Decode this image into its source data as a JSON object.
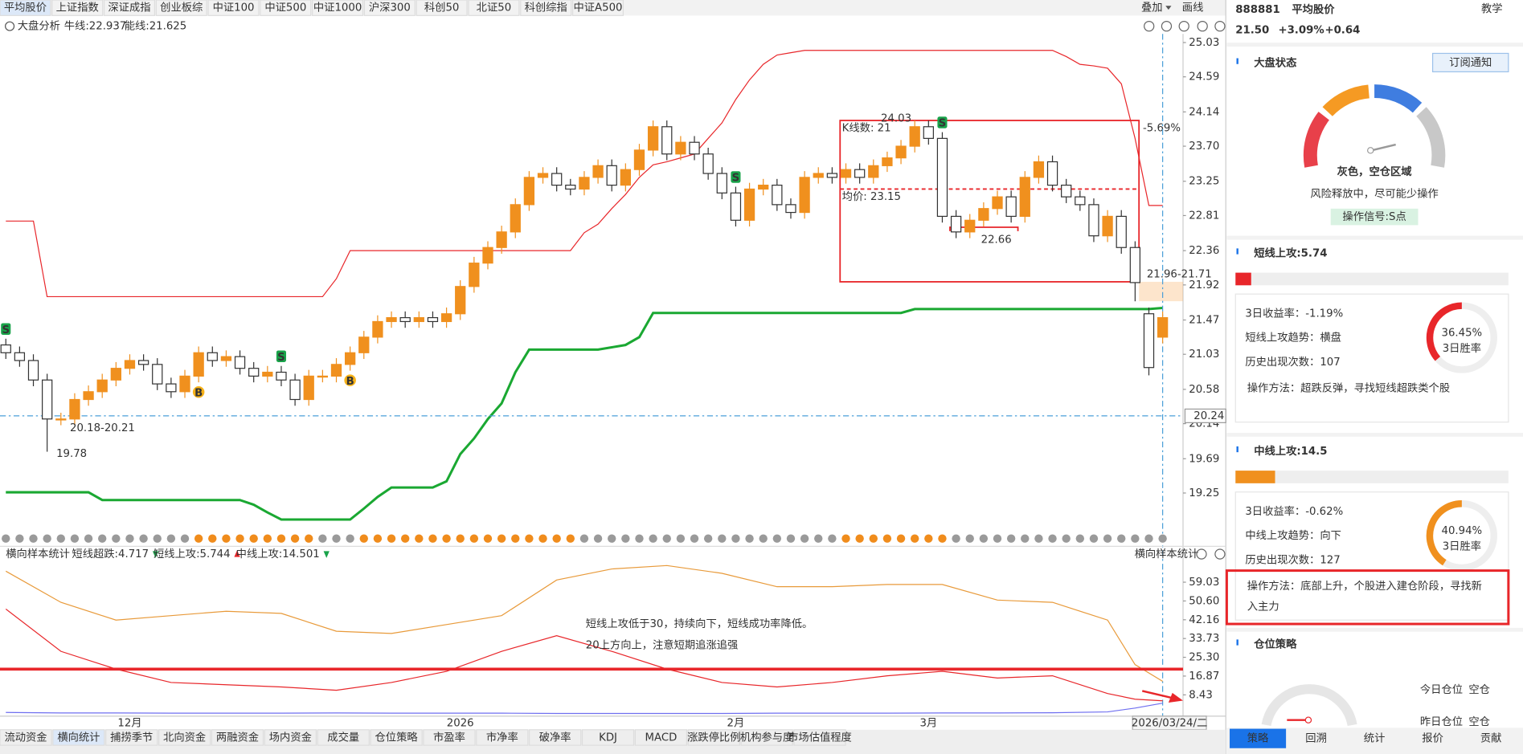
{
  "top_tabs": [
    "平均股价",
    "上证指数",
    "深证成指",
    "创业板综",
    "中证100",
    "中证500",
    "中证1000",
    "沪深300",
    "科创50",
    "北证50",
    "科创综指",
    "中证A500"
  ],
  "toolbar": {
    "overlay": "叠加",
    "draw": "画线"
  },
  "main_chart": {
    "type": "candlestick",
    "analysis": "大盘分析",
    "ylim": [
      18.79,
      25.14
    ],
    "yticks": [
      25.03,
      24.59,
      24.14,
      {
        "value": 23.7,
        "label": "23.70"
      },
      23.25,
      22.81,
      22.36,
      21.92,
      21.47,
      21.03,
      20.58,
      20.14,
      19.69,
      19.25
    ],
    "open": [
      21.15,
      21.05,
      20.95,
      20.7,
      20.2,
      20.2,
      20.45,
      20.55,
      20.7,
      20.85,
      20.95,
      20.9,
      20.65,
      20.55,
      20.75,
      21.05,
      20.95,
      21.0,
      20.85,
      20.75,
      20.8,
      20.7,
      20.45,
      20.75,
      20.75,
      20.9,
      21.05,
      21.25,
      21.45,
      21.5,
      21.45,
      21.5,
      21.45,
      21.55,
      21.9,
      22.2,
      22.4,
      22.6,
      22.95,
      23.3,
      23.35,
      23.2,
      23.15,
      23.3,
      23.45,
      23.2,
      23.4,
      23.65,
      23.95,
      23.6,
      23.75,
      23.6,
      23.35,
      23.1,
      22.75,
      23.15,
      23.2,
      22.95,
      22.85,
      23.3,
      23.35,
      23.3,
      23.4,
      23.3,
      23.45,
      23.55,
      23.7,
      23.95,
      23.8,
      22.8,
      22.6,
      22.75,
      22.9,
      23.05,
      22.8,
      23.3,
      23.5,
      23.2,
      23.05,
      22.95,
      22.55,
      22.8,
      22.4,
      21.55,
      21.25
    ],
    "high": [
      21.23,
      21.13,
      21.03,
      20.78,
      20.28,
      20.53,
      20.63,
      20.78,
      20.93,
      21.03,
      21.03,
      20.98,
      20.73,
      20.83,
      21.13,
      21.13,
      21.08,
      21.08,
      20.93,
      20.88,
      20.88,
      20.78,
      20.83,
      20.83,
      20.98,
      21.13,
      21.33,
      21.53,
      21.58,
      21.58,
      21.58,
      21.58,
      21.63,
      21.98,
      22.28,
      22.48,
      22.68,
      23.03,
      23.38,
      23.43,
      23.43,
      23.28,
      23.38,
      23.53,
      23.53,
      23.48,
      23.73,
      24.03,
      24.03,
      23.83,
      23.83,
      23.68,
      23.43,
      23.18,
      23.23,
      23.28,
      23.28,
      23.03,
      23.38,
      23.43,
      23.43,
      23.48,
      23.48,
      23.53,
      23.63,
      23.78,
      24.03,
      24.03,
      23.88,
      22.88,
      22.83,
      22.98,
      23.13,
      23.13,
      23.38,
      23.58,
      23.58,
      23.28,
      23.13,
      23.03,
      22.88,
      22.88,
      22.48,
      21.63,
      21.58
    ],
    "low": [
      20.97,
      20.87,
      20.62,
      19.78,
      20.12,
      20.12,
      20.37,
      20.47,
      20.62,
      20.77,
      20.82,
      20.57,
      20.47,
      20.47,
      20.67,
      20.87,
      20.87,
      20.77,
      20.67,
      20.67,
      20.62,
      20.37,
      20.37,
      20.67,
      20.67,
      20.82,
      20.97,
      21.17,
      21.37,
      21.37,
      21.37,
      21.37,
      21.37,
      21.47,
      21.82,
      22.12,
      22.32,
      22.52,
      22.87,
      23.22,
      23.12,
      23.07,
      23.07,
      23.22,
      23.12,
      23.12,
      23.32,
      23.57,
      23.52,
      23.52,
      23.52,
      23.27,
      23.02,
      22.67,
      22.67,
      23.07,
      22.87,
      22.77,
      22.77,
      23.22,
      23.22,
      23.22,
      23.22,
      23.22,
      23.37,
      23.47,
      23.62,
      23.72,
      22.72,
      22.52,
      22.52,
      22.67,
      22.82,
      22.72,
      22.72,
      23.22,
      23.12,
      22.97,
      22.87,
      22.47,
      22.47,
      22.32,
      21.71,
      20.76,
      21.17
    ],
    "close": [
      21.05,
      20.95,
      20.7,
      20.2,
      20.2,
      20.45,
      20.55,
      20.7,
      20.85,
      20.95,
      20.9,
      20.65,
      20.55,
      20.75,
      21.05,
      20.95,
      21.0,
      20.85,
      20.75,
      20.8,
      20.7,
      20.45,
      20.75,
      20.75,
      20.9,
      21.05,
      21.25,
      21.45,
      21.5,
      21.45,
      21.5,
      21.45,
      21.55,
      21.9,
      22.2,
      22.4,
      22.6,
      22.95,
      23.3,
      23.35,
      23.2,
      23.15,
      23.3,
      23.45,
      23.2,
      23.4,
      23.65,
      23.95,
      23.6,
      23.75,
      23.6,
      23.35,
      23.1,
      22.75,
      23.15,
      23.2,
      22.95,
      22.85,
      23.3,
      23.35,
      23.3,
      23.4,
      23.3,
      23.45,
      23.55,
      23.7,
      23.95,
      23.8,
      22.8,
      22.6,
      22.75,
      22.9,
      23.05,
      22.8,
      23.3,
      23.5,
      23.2,
      23.05,
      22.95,
      22.55,
      22.8,
      22.4,
      21.95,
      20.86,
      21.5
    ],
    "up_color": "#f0901e",
    "down_color": "#333333",
    "bull_line": {
      "name": "牛线:22.937",
      "color": "#e8262a",
      "values": [
        22.74,
        22.74,
        22.74,
        21.77,
        21.77,
        21.77,
        21.77,
        21.77,
        21.77,
        21.77,
        21.77,
        21.77,
        21.77,
        21.77,
        21.77,
        21.77,
        21.77,
        21.77,
        21.77,
        21.77,
        21.77,
        21.77,
        21.77,
        21.77,
        22.0,
        22.36,
        22.36,
        22.36,
        22.36,
        22.36,
        22.36,
        22.36,
        22.36,
        22.36,
        22.36,
        22.36,
        22.36,
        22.36,
        22.36,
        22.36,
        22.36,
        22.36,
        22.59,
        22.7,
        22.9,
        23.08,
        23.3,
        23.46,
        23.5,
        23.55,
        23.6,
        23.8,
        24.0,
        24.3,
        24.55,
        24.75,
        24.87,
        24.9,
        24.93,
        24.93,
        24.93,
        24.93,
        24.93,
        24.93,
        24.93,
        24.93,
        24.93,
        24.93,
        24.93,
        24.93,
        24.93,
        24.93,
        24.93,
        24.93,
        24.93,
        24.93,
        24.93,
        24.85,
        24.75,
        24.73,
        24.7,
        24.5,
        23.8,
        22.94,
        22.94
      ]
    },
    "energy_line": {
      "name": "能线:21.625",
      "color": "#1aa832",
      "values": [
        19.26,
        19.26,
        19.26,
        19.26,
        19.26,
        19.26,
        19.26,
        19.16,
        19.16,
        19.16,
        19.16,
        19.16,
        19.16,
        19.16,
        19.16,
        19.16,
        19.16,
        19.16,
        19.1,
        19.0,
        18.91,
        18.91,
        18.91,
        18.91,
        18.91,
        18.91,
        19.05,
        19.2,
        19.32,
        19.32,
        19.32,
        19.32,
        19.4,
        19.75,
        19.95,
        20.2,
        20.4,
        20.8,
        21.09,
        21.09,
        21.09,
        21.09,
        21.09,
        21.09,
        21.12,
        21.15,
        21.25,
        21.56,
        21.56,
        21.56,
        21.56,
        21.56,
        21.56,
        21.56,
        21.56,
        21.56,
        21.56,
        21.56,
        21.56,
        21.56,
        21.56,
        21.56,
        21.56,
        21.56,
        21.56,
        21.56,
        21.61,
        21.61,
        21.61,
        21.61,
        21.61,
        21.61,
        21.61,
        21.61,
        21.61,
        21.61,
        21.61,
        21.61,
        21.61,
        21.61,
        21.61,
        21.61,
        21.61,
        21.61,
        21.625
      ]
    },
    "signals": [
      {
        "label": "S",
        "index": 0
      },
      {
        "label": "B",
        "index": 14
      },
      {
        "label": "S",
        "index": 20
      },
      {
        "label": "B",
        "index": 25
      },
      {
        "label": "S",
        "index": 53
      },
      {
        "label": "S",
        "index": 68
      }
    ],
    "left_range": "20.18-20.21",
    "left_low": "19.78",
    "range_box": {
      "start": 61,
      "end": 82,
      "high": {
        "value": 24.03,
        "label": "24.03"
      },
      "low": 21.96,
      "count_label": "K线数: 21",
      "avg": {
        "value": 23.15,
        "label": "均价: 23.15"
      },
      "change": "-5.69%",
      "support": {
        "value": 22.66,
        "label": "22.66"
      },
      "low_label": "21.96-21.71"
    },
    "cursor": {
      "value": 20.24,
      "label": "20.24"
    }
  },
  "signal_dots": {
    "orange_ranges": [
      [
        14,
        22
      ],
      [
        26,
        41
      ],
      [
        61,
        68
      ]
    ],
    "count": 85
  },
  "lower_chart": {
    "type": "line",
    "title": "横向样本统计",
    "ylim": [
      -0.7,
      68.6
    ],
    "yticks": [
      59.03,
      {
        "value": 50.6,
        "label": "50.60"
      },
      42.16,
      33.73,
      {
        "value": 25.3,
        "label": "25.30"
      },
      16.87,
      8.43
    ],
    "threshold": 20,
    "x": [
      0,
      4,
      8,
      12,
      16,
      20,
      24,
      28,
      32,
      36,
      40,
      44,
      48,
      52,
      56,
      60,
      64,
      68,
      72,
      76,
      80,
      82,
      84
    ],
    "series": [
      {
        "name": "短线超跌:4.717",
        "color": "#6f6ff0",
        "values": [
          0.5,
          0.3,
          0.3,
          0.2,
          0.2,
          0.2,
          0.3,
          0.2,
          0.2,
          0.2,
          0.1,
          0.1,
          0.1,
          0.1,
          0.2,
          0.2,
          0.2,
          0.3,
          0.3,
          0.4,
          0.8,
          2.5,
          4.717
        ]
      },
      {
        "name": "短线上攻:5.744",
        "color": "#e8262a",
        "values": [
          47,
          28,
          20,
          14,
          13,
          12,
          10.5,
          14,
          19,
          28,
          35,
          28,
          20,
          14,
          12,
          14,
          17,
          19,
          16,
          17,
          9,
          6.5,
          5.744
        ]
      },
      {
        "name": "中线上攻:14.501",
        "color": "#e89a3a",
        "values": [
          64,
          50,
          42,
          44,
          46,
          45,
          37,
          36,
          40,
          44,
          60,
          65,
          66.5,
          63,
          57,
          57,
          58,
          58,
          51,
          50,
          42,
          22,
          14.501
        ]
      }
    ],
    "annotation": [
      "短线上攻低于30，持续向下，短线成功率降低。",
      "20上方向上，注意短期追涨追强"
    ],
    "x_labels": [
      {
        "label": "12月",
        "index": 9
      },
      {
        "label": "2026",
        "index": 33
      },
      {
        "label": "2月",
        "index": 53
      },
      {
        "label": "3月",
        "index": 67
      }
    ],
    "date": "2026/03/24/二"
  },
  "bottom_tabs": [
    "流动资金",
    "横向统计",
    "捕捞季节",
    "北向资金",
    "两融资金",
    "场内资金",
    "成交量",
    "仓位策略",
    "市盈率",
    "市净率",
    "破净率",
    "KDJ",
    "MACD",
    "涨跌停比例",
    "机构参与度",
    "市场估值程度"
  ],
  "side_panel": {
    "code": "888881",
    "name": "平均股价",
    "help": "教学",
    "price": "21.50",
    "change_pct": "+3.09%",
    "change": "+0.64",
    "market_state": {
      "title": "大盘状态",
      "subscribe": "订阅通知",
      "status": "灰色，空仓区域",
      "desc": "风险释放中，尽可能少操作",
      "signal": "操作信号:S点"
    },
    "short_attack": {
      "label": "短线上攻:",
      "value": 5.74,
      "color": "#e8262a",
      "rows": [
        "3日收益率：-1.19%",
        "短线上攻趋势：横盘",
        "历史出现次数：107"
      ],
      "method": [
        "操作方法：超跌反弹，寻找短线超跌类个股"
      ],
      "win_rate": {
        "value": 36.45,
        "label": "36.45%"
      },
      "win_label": "3日胜率"
    },
    "mid_attack": {
      "label": "中线上攻:",
      "value": 14.5,
      "color": "#f0901e",
      "rows": [
        "3日收益率：-0.62%",
        "中线上攻趋势：向下",
        "历史出现次数：127"
      ],
      "method": [
        "操作方法：底部上升，个股进入建仓阶段，寻找新",
        "入主力"
      ],
      "win_rate": {
        "value": 40.94,
        "label": "40.94%"
      },
      "win_label": "3日胜率"
    },
    "position": {
      "title": "仓位策略",
      "today": "今日仓位",
      "today_value": "空仓",
      "yesterday": "昨日仓位",
      "yesterday_value": "空仓"
    },
    "tabs": [
      "策略",
      "回溯",
      "统计",
      "报价",
      "贡献"
    ]
  }
}
